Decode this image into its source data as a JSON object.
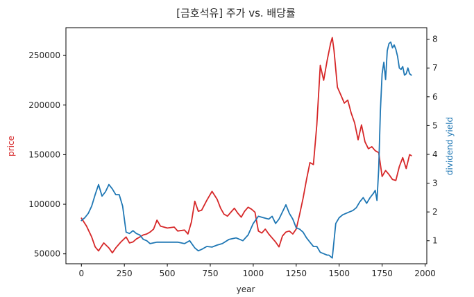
{
  "chart_data": {
    "type": "line",
    "title": "[금호석유] 주가 vs. 배당률",
    "xlabel": "year",
    "ylabel_left": "price",
    "ylabel_right": "dividend yield",
    "xlim": [
      -90,
      2010
    ],
    "ylim_left": [
      40000,
      278000
    ],
    "ylim_right": [
      0.2,
      8.4
    ],
    "xticks": [
      0,
      250,
      500,
      750,
      1000,
      1250,
      1500,
      1750,
      2000
    ],
    "yticks_left": [
      50000,
      100000,
      150000,
      200000,
      250000
    ],
    "yticks_right": [
      1,
      2,
      3,
      4,
      5,
      6,
      7,
      8
    ],
    "grid": false,
    "colors": {
      "price": "#d62728",
      "dividend_yield": "#1f77b4",
      "axis": "#000000",
      "text": "#262626"
    },
    "series": [
      {
        "name": "price",
        "axis": "left",
        "x": [
          0,
          30,
          60,
          80,
          100,
          130,
          160,
          180,
          200,
          230,
          260,
          280,
          300,
          320,
          340,
          360,
          380,
          400,
          420,
          440,
          460,
          500,
          540,
          560,
          600,
          620,
          640,
          660,
          680,
          700,
          730,
          760,
          790,
          810,
          830,
          850,
          870,
          890,
          910,
          930,
          950,
          970,
          990,
          1010,
          1030,
          1050,
          1070,
          1090,
          1110,
          1130,
          1150,
          1170,
          1190,
          1210,
          1230,
          1250,
          1270,
          1290,
          1310,
          1330,
          1350,
          1370,
          1390,
          1410,
          1430,
          1450,
          1460,
          1470,
          1490,
          1510,
          1530,
          1550,
          1570,
          1590,
          1610,
          1630,
          1650,
          1670,
          1690,
          1710,
          1730,
          1750,
          1770,
          1790,
          1810,
          1830,
          1850,
          1870,
          1890,
          1910,
          1920
        ],
        "values": [
          86000,
          78000,
          67000,
          57000,
          53000,
          61000,
          56000,
          51000,
          56000,
          62000,
          67000,
          61000,
          62000,
          65000,
          67000,
          69000,
          70000,
          72000,
          75000,
          84000,
          78000,
          76000,
          77000,
          73000,
          74000,
          70000,
          82000,
          103000,
          93000,
          94000,
          104000,
          113000,
          105000,
          96000,
          90000,
          88000,
          92000,
          96000,
          91000,
          87000,
          93000,
          97000,
          95000,
          92000,
          73000,
          71000,
          75000,
          70000,
          66000,
          62000,
          57000,
          68000,
          72000,
          73000,
          70000,
          75000,
          90000,
          106000,
          125000,
          142000,
          140000,
          180000,
          240000,
          225000,
          245000,
          262000,
          268000,
          255000,
          218000,
          210000,
          202000,
          205000,
          192000,
          182000,
          165000,
          180000,
          163000,
          156000,
          158000,
          154000,
          152000,
          128000,
          134000,
          130000,
          125000,
          124000,
          138000,
          147000,
          136000,
          150000,
          149000
        ]
      },
      {
        "name": "dividend yield",
        "axis": "right",
        "x": [
          0,
          20,
          40,
          60,
          80,
          100,
          120,
          140,
          160,
          180,
          200,
          220,
          240,
          260,
          280,
          300,
          320,
          340,
          360,
          380,
          400,
          440,
          480,
          520,
          560,
          600,
          630,
          660,
          680,
          700,
          730,
          760,
          790,
          820,
          860,
          900,
          940,
          970,
          1000,
          1030,
          1060,
          1090,
          1110,
          1130,
          1150,
          1170,
          1190,
          1210,
          1230,
          1250,
          1270,
          1290,
          1310,
          1330,
          1350,
          1370,
          1390,
          1410,
          1430,
          1440,
          1460,
          1480,
          1500,
          1520,
          1540,
          1560,
          1580,
          1600,
          1620,
          1640,
          1660,
          1680,
          1700,
          1710,
          1720,
          1730,
          1740,
          1750,
          1760,
          1770,
          1780,
          1790,
          1800,
          1810,
          1820,
          1830,
          1840,
          1850,
          1860,
          1870,
          1880,
          1890,
          1900,
          1910,
          1920
        ],
        "values": [
          1.7,
          1.8,
          1.95,
          2.2,
          2.6,
          2.95,
          2.55,
          2.7,
          2.95,
          2.8,
          2.6,
          2.6,
          2.2,
          1.3,
          1.25,
          1.35,
          1.25,
          1.2,
          1.05,
          1.0,
          0.9,
          0.95,
          0.95,
          0.95,
          0.95,
          0.9,
          1.0,
          0.75,
          0.65,
          0.7,
          0.8,
          0.78,
          0.85,
          0.9,
          1.05,
          1.1,
          1.0,
          1.2,
          1.6,
          1.85,
          1.8,
          1.75,
          1.85,
          1.6,
          1.75,
          2.0,
          2.25,
          1.95,
          1.75,
          1.45,
          1.4,
          1.3,
          1.1,
          0.95,
          0.8,
          0.8,
          0.6,
          0.55,
          0.5,
          0.5,
          0.4,
          1.6,
          1.8,
          1.9,
          1.95,
          2.0,
          2.05,
          2.15,
          2.35,
          2.5,
          2.3,
          2.5,
          2.65,
          2.75,
          2.4,
          3.5,
          5.5,
          6.8,
          7.2,
          6.6,
          7.6,
          7.85,
          7.9,
          7.7,
          7.8,
          7.65,
          7.4,
          7.0,
          6.95,
          7.05,
          6.75,
          6.8,
          7.0,
          6.8,
          6.75
        ]
      }
    ]
  }
}
